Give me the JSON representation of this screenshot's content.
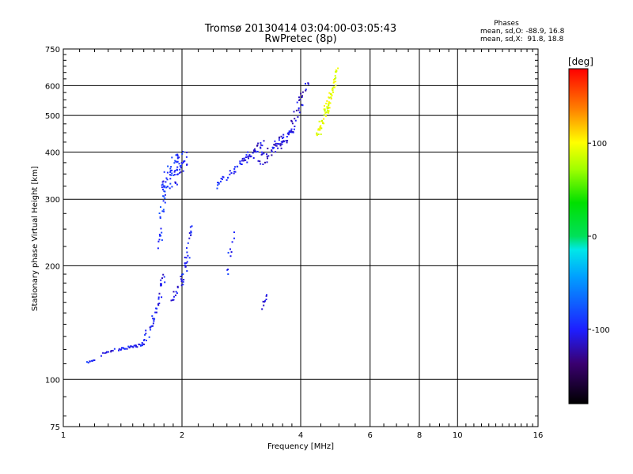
{
  "header": {
    "title": "Tromsø 20130414 03:04:00-03:05:43",
    "subtitle": "RwPretec (8p)",
    "phases_title": "Phases",
    "phases_line1": "mean, sd,O: -88.9, 16.8",
    "phases_line2": "mean, sd,X:  91.8, 18.8"
  },
  "colorbar": {
    "label": "[deg]",
    "range": [
      -180,
      180
    ],
    "ticks": [
      "100",
      "0",
      "-100"
    ],
    "tick_values": [
      100,
      0,
      -100
    ]
  },
  "chart_data": {
    "type": "scatter",
    "xscale": "log",
    "yscale": "log",
    "xlabel": "Frequency [MHz]",
    "ylabel": "Stationary phase Virtual Height [km]",
    "xlim": [
      1,
      16
    ],
    "ylim": [
      75,
      750
    ],
    "xticks": [
      1,
      2,
      4,
      6,
      8,
      10,
      16
    ],
    "xtick_labels": [
      "1",
      "2",
      "4",
      "6",
      "8",
      "10",
      "16"
    ],
    "yticks": [
      75,
      100,
      200,
      300,
      400,
      500,
      600,
      750
    ],
    "ytick_labels": [
      "75",
      "100",
      "200",
      "300",
      "400",
      "500",
      "600",
      "750"
    ],
    "grid": true,
    "series": [
      {
        "segments": [
          {
            "x0": 1.15,
            "x1": 1.2,
            "y0": 111,
            "y1": 112,
            "n": 8,
            "phase": -98,
            "jit": 0.006
          },
          {
            "x0": 1.25,
            "x1": 1.35,
            "y0": 116,
            "y1": 120,
            "n": 10,
            "phase": -102,
            "jit": 0.008
          },
          {
            "x0": 1.38,
            "x1": 1.6,
            "y0": 120,
            "y1": 124,
            "n": 30,
            "phase": -103,
            "jit": 0.007
          },
          {
            "x0": 1.6,
            "x1": 1.72,
            "y0": 125,
            "y1": 150,
            "n": 22,
            "phase": -100,
            "jit": 0.02
          },
          {
            "x0": 1.72,
            "x1": 1.8,
            "y0": 150,
            "y1": 190,
            "n": 20,
            "phase": -104,
            "jit": 0.02
          },
          {
            "x0": 1.75,
            "x1": 1.82,
            "y0": 230,
            "y1": 330,
            "n": 25,
            "phase": -90,
            "jit": 0.03
          },
          {
            "x0": 1.8,
            "x1": 1.95,
            "y0": 310,
            "y1": 390,
            "n": 45,
            "phase": -95,
            "jit": 0.04
          },
          {
            "x0": 1.92,
            "x1": 2.05,
            "y0": 330,
            "y1": 400,
            "n": 30,
            "phase": -100,
            "jit": 0.03
          },
          {
            "x0": 1.88,
            "x1": 2.0,
            "y0": 160,
            "y1": 185,
            "n": 15,
            "phase": -105,
            "jit": 0.03
          },
          {
            "x0": 2.0,
            "x1": 2.12,
            "y0": 180,
            "y1": 250,
            "n": 28,
            "phase": -100,
            "jit": 0.02
          },
          {
            "x0": 2.45,
            "x1": 2.55,
            "y0": 325,
            "y1": 345,
            "n": 10,
            "phase": -98,
            "jit": 0.01
          },
          {
            "x0": 2.6,
            "x1": 2.85,
            "y0": 340,
            "y1": 380,
            "n": 18,
            "phase": -100,
            "jit": 0.02
          },
          {
            "x0": 2.6,
            "x1": 2.7,
            "y0": 195,
            "y1": 240,
            "n": 10,
            "phase": -96,
            "jit": 0.02
          },
          {
            "x0": 2.85,
            "x1": 3.2,
            "y0": 375,
            "y1": 420,
            "n": 35,
            "phase": -108,
            "jit": 0.02
          },
          {
            "x0": 3.15,
            "x1": 3.6,
            "y0": 380,
            "y1": 430,
            "n": 35,
            "phase": -110,
            "jit": 0.025
          },
          {
            "x0": 3.5,
            "x1": 3.85,
            "y0": 410,
            "y1": 460,
            "n": 28,
            "phase": -108,
            "jit": 0.02
          },
          {
            "x0": 3.75,
            "x1": 4.05,
            "y0": 450,
            "y1": 560,
            "n": 20,
            "phase": -110,
            "jit": 0.02
          },
          {
            "x0": 3.95,
            "x1": 4.2,
            "y0": 550,
            "y1": 610,
            "n": 10,
            "phase": -112,
            "jit": 0.015
          },
          {
            "x0": 4.4,
            "x1": 4.75,
            "y0": 440,
            "y1": 550,
            "n": 38,
            "phase": 95,
            "jit": 0.02
          },
          {
            "x0": 4.65,
            "x1": 4.95,
            "y0": 510,
            "y1": 660,
            "n": 38,
            "phase": 92,
            "jit": 0.02
          },
          {
            "x0": 3.2,
            "x1": 3.28,
            "y0": 155,
            "y1": 168,
            "n": 8,
            "phase": -108,
            "jit": 0.01
          }
        ]
      }
    ]
  }
}
